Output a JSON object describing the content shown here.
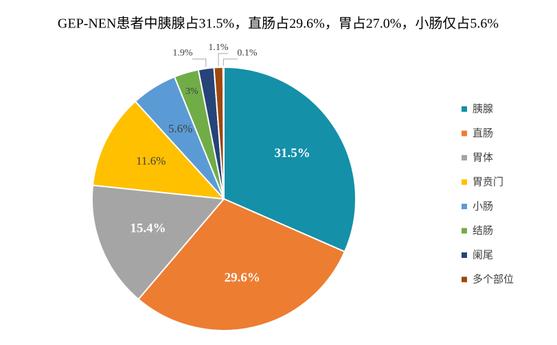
{
  "chart_data": {
    "type": "pie",
    "title": "GEP-NEN患者中胰腺占31.5%，直肠占29.6%，胃占27.0%，小肠仅占5.6%",
    "categories": [
      "胰腺",
      "直肠",
      "胃体",
      "胃贲门",
      "小肠",
      "结肠",
      "阑尾",
      "多个部位",
      null
    ],
    "values": [
      31.5,
      29.6,
      15.4,
      11.6,
      5.6,
      3,
      1.9,
      1.1,
      0.1
    ],
    "value_labels": [
      "31.5%",
      "29.6%",
      "15.4%",
      "11.6%",
      "5.6%",
      "3%",
      "1.9%",
      "1.1%",
      "0.1%"
    ],
    "colors": [
      "#1490a8",
      "#ed7d31",
      "#a5a5a5",
      "#ffc000",
      "#5b9bd5",
      "#70ad47",
      "#264478",
      "#9e480e",
      "#636363"
    ],
    "legend": "right"
  }
}
